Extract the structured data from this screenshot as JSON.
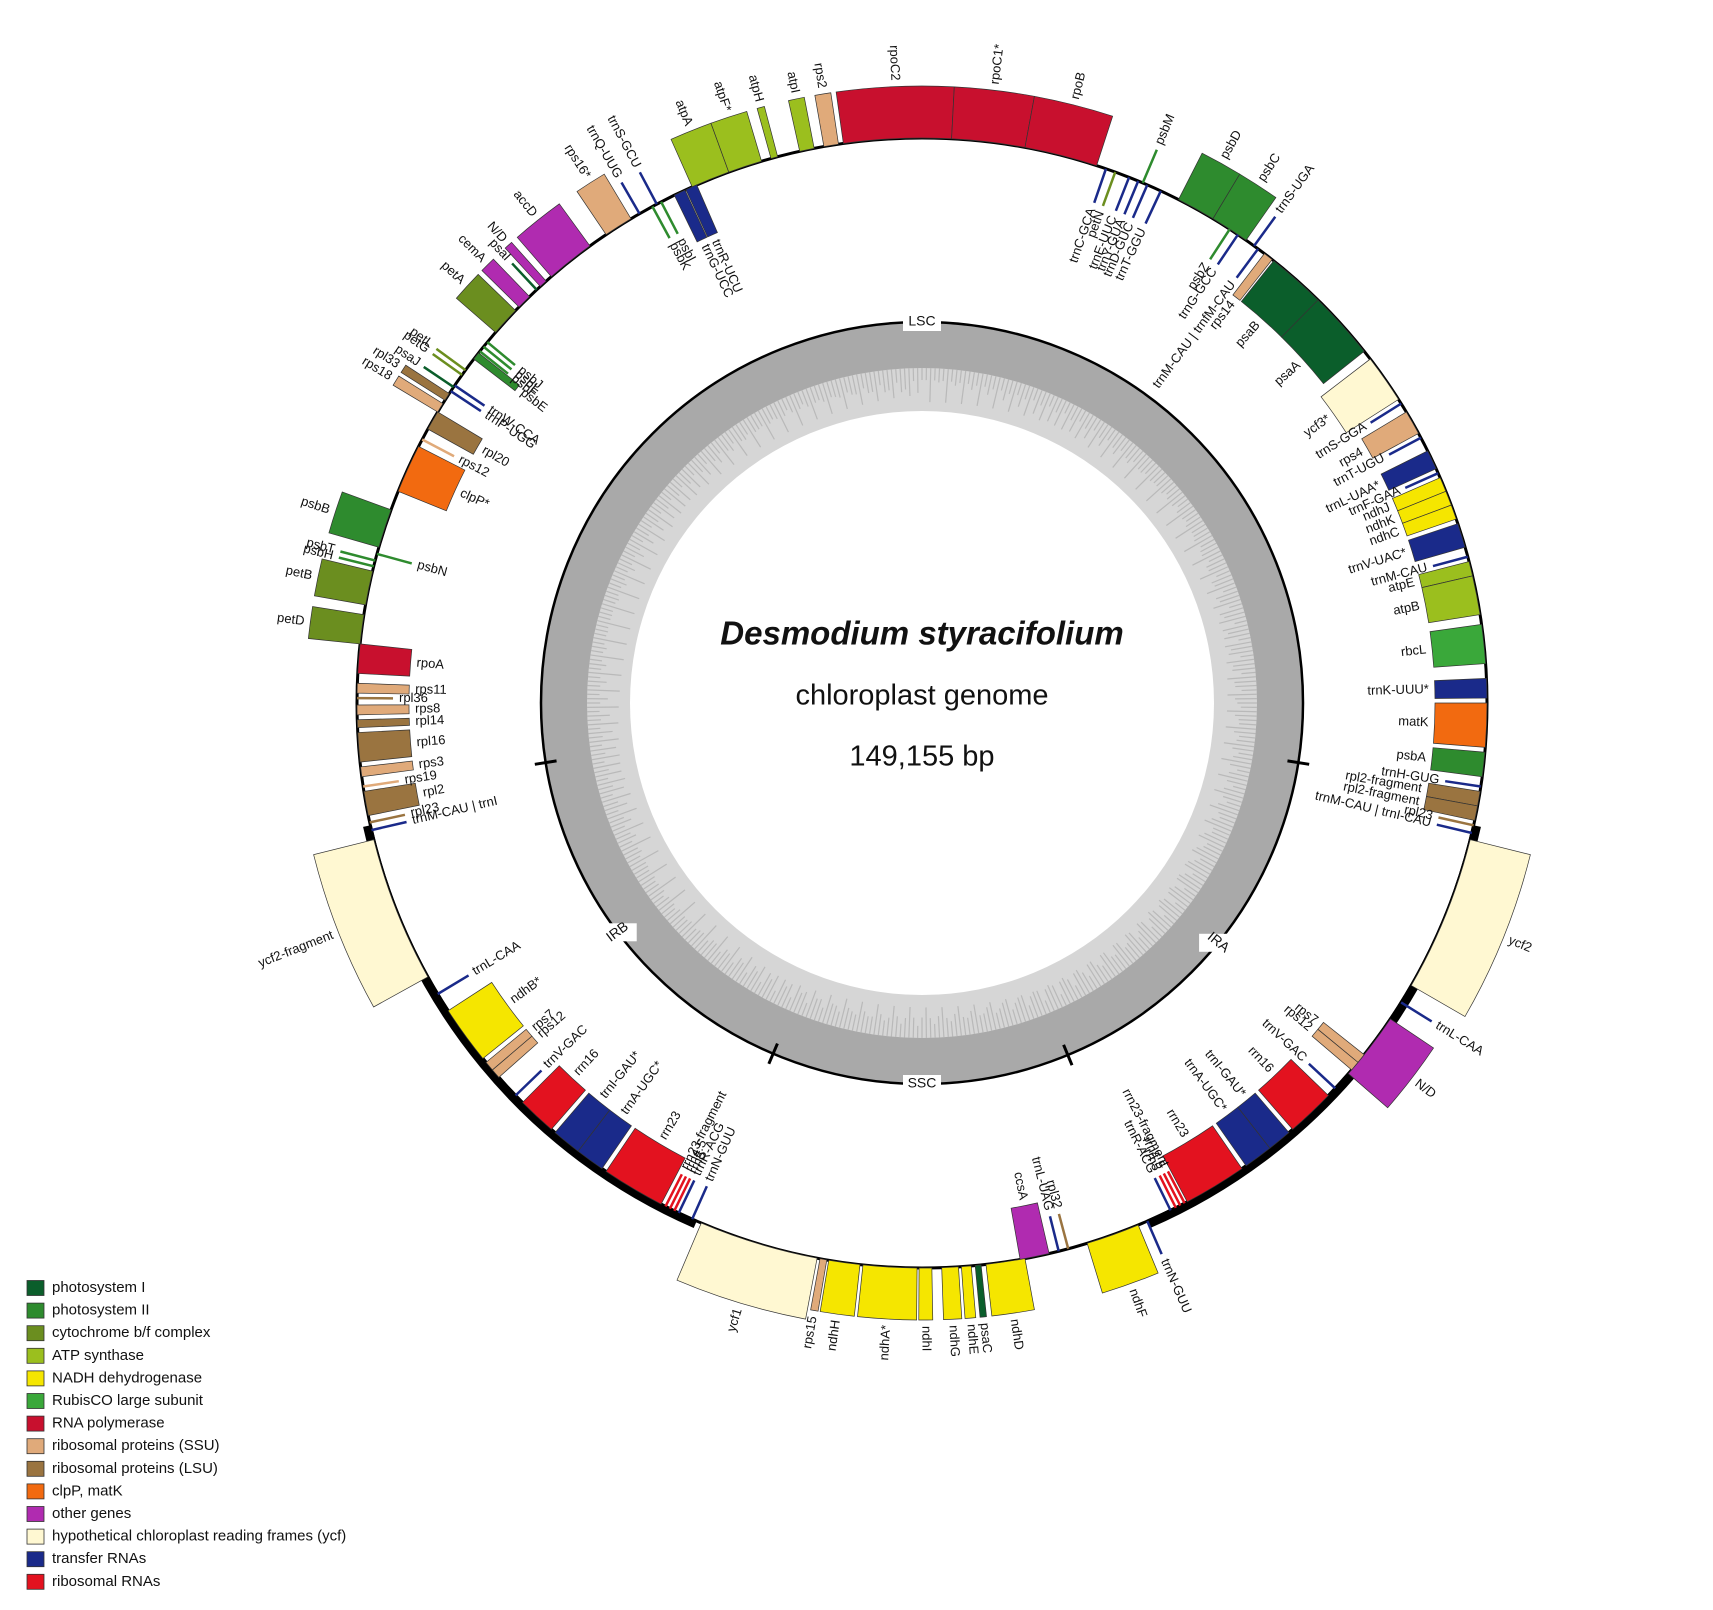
{
  "title": "Desmodium styracifolium",
  "subtitle": "chloroplast genome",
  "length": "149,155 bp",
  "regions": [
    "LSC",
    "IRB",
    "SSC",
    "IRA"
  ],
  "genes": [
    "atpA",
    "atpF*",
    "atpH",
    "atpI",
    "rps2",
    "rpoC2",
    "rpoC1*",
    "rpoB",
    "psbM",
    "psbD",
    "psbC",
    "trnS-UGA",
    "trnC-GCA",
    "petN",
    "trnE-UUC",
    "trnY-GUA",
    "trnD-GUC",
    "trnT-GGU",
    "psbZ",
    "trnG-GCC",
    "trnM-CAU | trnfM-CAU",
    "rps14",
    "psaB",
    "psaA",
    "ycf3*",
    "trnS-GGA",
    "rps4",
    "trnT-UGU",
    "trnL-UAA*",
    "trnF-GAA",
    "ndhJ",
    "ndhK",
    "ndhC",
    "trnV-UAC*",
    "trnM-CAU",
    "atpE",
    "atpB",
    "rbcL",
    "trnK-UUU*",
    "matK",
    "psbA",
    "trnH-GUG",
    "rpl2-fragment",
    "rpl2-fragment",
    "rpl23",
    "trnM-CAU | trnI-CAU",
    "ycf2",
    "trnL-CAA",
    "N/D",
    "rps7",
    "rps12",
    "trnV-GAC",
    "rrn16",
    "trnI-GAU*",
    "trnA-UGC*",
    "rrn23",
    "rrn23-fragment",
    "rrn4.5",
    "rrn5",
    "trnR-ACG",
    "trnN-GUU",
    "ndhF",
    "rpl32",
    "trnL-UAG",
    "ccsA",
    "ndhD",
    "psaC",
    "ndhE",
    "ndhG",
    "ndhI",
    "ndhA*",
    "ndhH",
    "rps15",
    "ycf1",
    "trnN-GUU",
    "trnR-ACG",
    "rrn5",
    "rrn4.5",
    "rrn23-fragment",
    "rrn23",
    "trnA-UGC*",
    "trnI-GAU*",
    "rrn16",
    "trnV-GAC",
    "rps12",
    "rps7",
    "ndhB*",
    "trnL-CAA",
    "ycf2-fragment",
    "trnM-CAU | trnI",
    "rpl23",
    "rpl2",
    "rps19",
    "rps3",
    "rpl16",
    "rpl14",
    "rps8",
    "rpl36",
    "rps11",
    "rpoA",
    "petD",
    "petB",
    "psbH",
    "psbT",
    "psbN",
    "psbB",
    "clpP*",
    "rps12",
    "rpl20",
    "rps18",
    "rpl33",
    "psaJ",
    "trnP-UGG",
    "trnW-CCA",
    "petG",
    "petL",
    "psbE",
    "psbF",
    "psbL",
    "psbJ",
    "petA",
    "cemA",
    "psaI",
    "N/D",
    "accD",
    "rps16*",
    "trnQ-UUG",
    "psbK",
    "psbI",
    "trnS-GCU",
    "trnG-UCC",
    "trnR-UCU"
  ],
  "legend": [
    {
      "label": "photosystem I",
      "color": "#0b5e2b"
    },
    {
      "label": "photosystem II",
      "color": "#2e8b2e"
    },
    {
      "label": "cytochrome b/f complex",
      "color": "#6b8e1f"
    },
    {
      "label": "ATP synthase",
      "color": "#9bbf1e"
    },
    {
      "label": "NADH dehydrogenase",
      "color": "#f5e600"
    },
    {
      "label": "RubisCO large subunit",
      "color": "#3aa83a"
    },
    {
      "label": "RNA polymerase",
      "color": "#c8102e"
    },
    {
      "label": "ribosomal proteins (SSU)",
      "color": "#e0aa7a"
    },
    {
      "label": "ribosomal proteins (LSU)",
      "color": "#9a7440"
    },
    {
      "label": "clpP, matK",
      "color": "#f26a10"
    },
    {
      "label": "other genes",
      "color": "#b02bb0"
    },
    {
      "label": "hypothetical chloroplast reading frames (ycf)",
      "color": "#fff8d2"
    },
    {
      "label": "transfer RNAs",
      "color": "#1a2a8a"
    },
    {
      "label": "ribosomal RNAs",
      "color": "#e3121f"
    }
  ]
}
